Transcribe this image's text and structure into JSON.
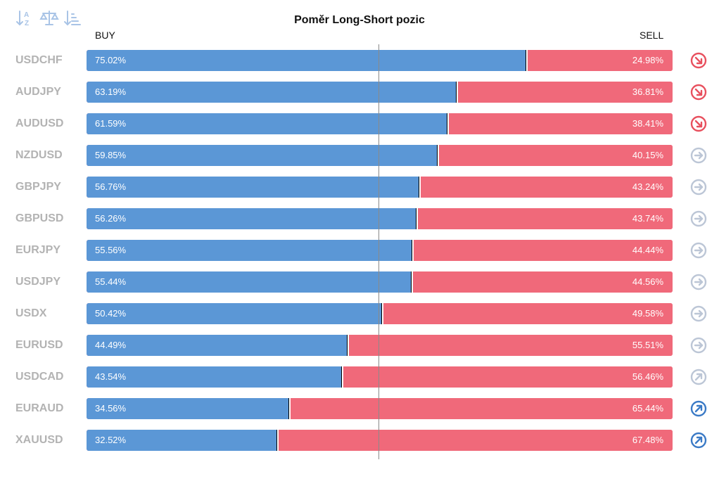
{
  "toolbar": {
    "buttons": [
      {
        "name": "sort-alphabetical-icon"
      },
      {
        "name": "balance-scale-icon"
      },
      {
        "name": "sort-descending-icon"
      }
    ]
  },
  "chart_data": {
    "type": "bar",
    "stacked": true,
    "orientation": "horizontal",
    "title": "Poměr Long-Short pozic",
    "buy_label": "BUY",
    "sell_label": "SELL",
    "xlim": [
      0,
      100
    ],
    "reference_line": 50,
    "colors": {
      "buy": "#5b97d6",
      "sell": "#f0697a",
      "trend_down": "#e8505e",
      "trend_neutral": "#bcc6d6",
      "trend_up": "#3a7ac6"
    },
    "rows": [
      {
        "symbol": "USDCHF",
        "buy": 75.02,
        "sell": 24.98,
        "buy_label": "75.02%",
        "sell_label": "24.98%",
        "trend": "down",
        "trend_icon": "arrow-down-right-icon"
      },
      {
        "symbol": "AUDJPY",
        "buy": 63.19,
        "sell": 36.81,
        "buy_label": "63.19%",
        "sell_label": "36.81%",
        "trend": "down",
        "trend_icon": "arrow-down-right-icon"
      },
      {
        "symbol": "AUDUSD",
        "buy": 61.59,
        "sell": 38.41,
        "buy_label": "61.59%",
        "sell_label": "38.41%",
        "trend": "down",
        "trend_icon": "arrow-down-right-icon"
      },
      {
        "symbol": "NZDUSD",
        "buy": 59.85,
        "sell": 40.15,
        "buy_label": "59.85%",
        "sell_label": "40.15%",
        "trend": "neutral",
        "trend_icon": "arrow-right-icon"
      },
      {
        "symbol": "GBPJPY",
        "buy": 56.76,
        "sell": 43.24,
        "buy_label": "56.76%",
        "sell_label": "43.24%",
        "trend": "neutral",
        "trend_icon": "arrow-right-icon"
      },
      {
        "symbol": "GBPUSD",
        "buy": 56.26,
        "sell": 43.74,
        "buy_label": "56.26%",
        "sell_label": "43.74%",
        "trend": "neutral",
        "trend_icon": "arrow-right-icon"
      },
      {
        "symbol": "EURJPY",
        "buy": 55.56,
        "sell": 44.44,
        "buy_label": "55.56%",
        "sell_label": "44.44%",
        "trend": "neutral",
        "trend_icon": "arrow-right-icon"
      },
      {
        "symbol": "USDJPY",
        "buy": 55.44,
        "sell": 44.56,
        "buy_label": "55.44%",
        "sell_label": "44.56%",
        "trend": "neutral",
        "trend_icon": "arrow-right-icon"
      },
      {
        "symbol": "USDX",
        "buy": 50.42,
        "sell": 49.58,
        "buy_label": "50.42%",
        "sell_label": "49.58%",
        "trend": "neutral",
        "trend_icon": "arrow-right-icon"
      },
      {
        "symbol": "EURUSD",
        "buy": 44.49,
        "sell": 55.51,
        "buy_label": "44.49%",
        "sell_label": "55.51%",
        "trend": "neutral",
        "trend_icon": "arrow-right-icon"
      },
      {
        "symbol": "USDCAD",
        "buy": 43.54,
        "sell": 56.46,
        "buy_label": "43.54%",
        "sell_label": "56.46%",
        "trend": "neutral-up",
        "trend_icon": "arrow-up-right-icon"
      },
      {
        "symbol": "EURAUD",
        "buy": 34.56,
        "sell": 65.44,
        "buy_label": "34.56%",
        "sell_label": "65.44%",
        "trend": "up",
        "trend_icon": "arrow-up-right-icon"
      },
      {
        "symbol": "XAUUSD",
        "buy": 32.52,
        "sell": 67.48,
        "buy_label": "32.52%",
        "sell_label": "67.48%",
        "trend": "up",
        "trend_icon": "arrow-up-right-icon"
      }
    ]
  }
}
